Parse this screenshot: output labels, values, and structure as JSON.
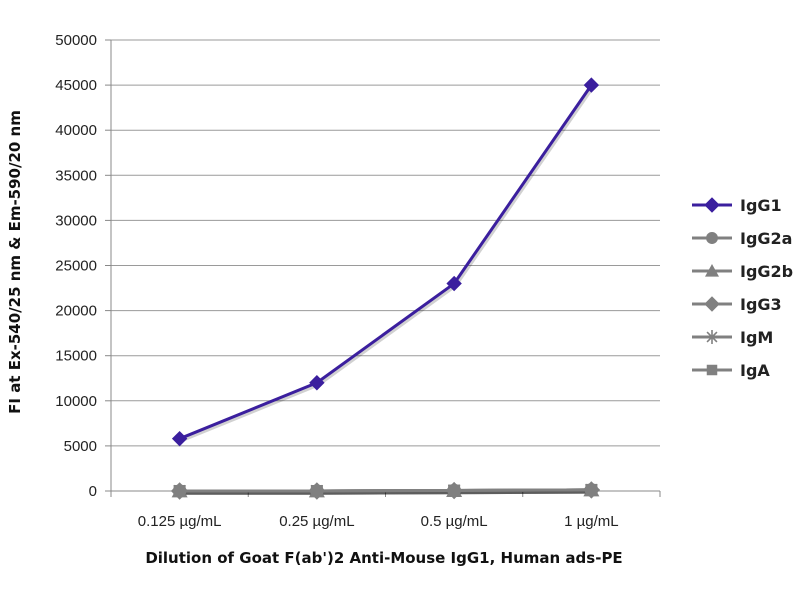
{
  "chart_data": {
    "type": "line",
    "title": "",
    "xlabel": "Dilution of Goat F(ab')2 Anti-Mouse IgG1, Human ads-PE",
    "ylabel": "FI at Ex-540/25 nm & Em-590/20 nm",
    "categories": [
      "0.125 µg/mL",
      "0.25 µg/mL",
      "0.5 µg/mL",
      "1 µg/mL"
    ],
    "ylim": [
      0,
      50000
    ],
    "yticks": [
      0,
      5000,
      10000,
      15000,
      20000,
      25000,
      30000,
      35000,
      40000,
      45000,
      50000
    ],
    "grid": "horizontal",
    "legend_position": "right",
    "series": [
      {
        "name": "IgG1",
        "values": [
          5800,
          12000,
          23000,
          45000
        ],
        "color": "#3b1f9e",
        "marker": "diamond"
      },
      {
        "name": "IgG2a",
        "values": [
          0,
          0,
          50,
          120
        ],
        "color": "#808080",
        "marker": "circle"
      },
      {
        "name": "IgG2b",
        "values": [
          0,
          0,
          50,
          120
        ],
        "color": "#808080",
        "marker": "triangle"
      },
      {
        "name": "IgG3",
        "values": [
          0,
          0,
          50,
          120
        ],
        "color": "#808080",
        "marker": "diamond"
      },
      {
        "name": "IgM",
        "values": [
          0,
          0,
          50,
          120
        ],
        "color": "#808080",
        "marker": "star"
      },
      {
        "name": "IgA",
        "values": [
          0,
          0,
          50,
          120
        ],
        "color": "#808080",
        "marker": "square"
      }
    ]
  }
}
